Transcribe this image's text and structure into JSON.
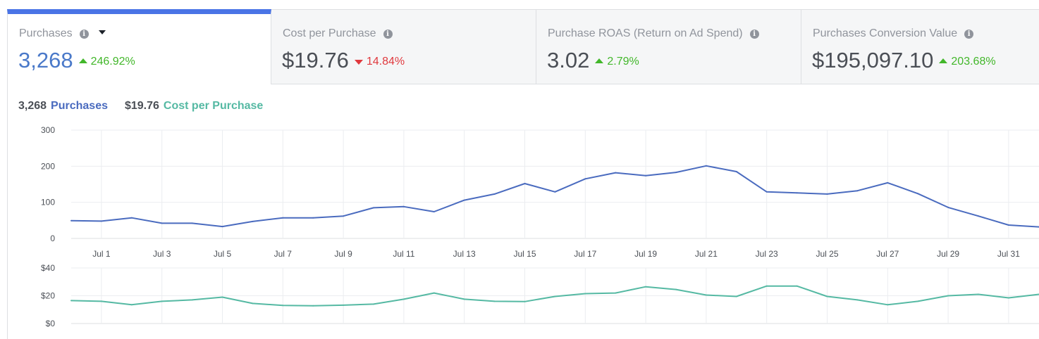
{
  "tabs": [
    {
      "label": "Purchases",
      "value": "3,268",
      "change": "246.92%",
      "direction": "up",
      "active": true
    },
    {
      "label": "Cost per Purchase",
      "value": "$19.76",
      "change": "14.84%",
      "direction": "down",
      "active": false
    },
    {
      "label": "Purchase ROAS (Return on Ad Spend)",
      "value": "3.02",
      "change": "2.79%",
      "direction": "up",
      "active": false
    },
    {
      "label": "Purchases Conversion Value",
      "value": "$195,097.10",
      "change": "203.68%",
      "direction": "up",
      "active": false
    }
  ],
  "legend": {
    "series1_value": "3,268",
    "series1_name": "Purchases",
    "series2_value": "$19.76",
    "series2_name": "Cost per Purchase"
  },
  "chart_data": [
    {
      "type": "line",
      "x": [
        "Jun 30",
        "Jul 1",
        "Jul 2",
        "Jul 3",
        "Jul 4",
        "Jul 5",
        "Jul 6",
        "Jul 7",
        "Jul 8",
        "Jul 9",
        "Jul 10",
        "Jul 11",
        "Jul 12",
        "Jul 13",
        "Jul 14",
        "Jul 15",
        "Jul 16",
        "Jul 17",
        "Jul 18",
        "Jul 19",
        "Jul 20",
        "Jul 21",
        "Jul 22",
        "Jul 23",
        "Jul 24",
        "Jul 25",
        "Jul 26",
        "Jul 27",
        "Jul 28",
        "Jul 29",
        "Jul 30",
        "Jul 31",
        "Aug 1"
      ],
      "tick_labels": [
        "Jul 1",
        "Jul 3",
        "Jul 5",
        "Jul 7",
        "Jul 9",
        "Jul 11",
        "Jul 13",
        "Jul 15",
        "Jul 17",
        "Jul 19",
        "Jul 21",
        "Jul 23",
        "Jul 25",
        "Jul 27",
        "Jul 29",
        "Jul 31"
      ],
      "series": [
        {
          "name": "Purchases",
          "color": "#4a6bbf",
          "values": [
            49,
            48,
            57,
            42,
            42,
            33,
            47,
            57,
            57,
            62,
            85,
            88,
            74,
            106,
            123,
            152,
            129,
            165,
            182,
            174,
            183,
            201,
            185,
            129,
            126,
            123,
            132,
            154,
            124,
            86,
            62,
            37,
            32
          ]
        }
      ],
      "yticks": [
        "0",
        "100",
        "200",
        "300"
      ],
      "ylim": [
        0,
        300
      ],
      "grid": true
    },
    {
      "type": "line",
      "x": [
        "Jun 30",
        "Jul 1",
        "Jul 2",
        "Jul 3",
        "Jul 4",
        "Jul 5",
        "Jul 6",
        "Jul 7",
        "Jul 8",
        "Jul 9",
        "Jul 10",
        "Jul 11",
        "Jul 12",
        "Jul 13",
        "Jul 14",
        "Jul 15",
        "Jul 16",
        "Jul 17",
        "Jul 18",
        "Jul 19",
        "Jul 20",
        "Jul 21",
        "Jul 22",
        "Jul 23",
        "Jul 24",
        "Jul 25",
        "Jul 26",
        "Jul 27",
        "Jul 28",
        "Jul 29",
        "Jul 30",
        "Jul 31",
        "Aug 1"
      ],
      "series": [
        {
          "name": "Cost per Purchase",
          "color": "#55b9a3",
          "values": [
            16.5,
            16,
            13.5,
            16,
            17,
            19,
            14.5,
            13,
            12.8,
            13.2,
            14,
            17.5,
            22,
            17.5,
            16,
            15.8,
            19.5,
            21.5,
            22,
            26.5,
            24.5,
            20.5,
            19.5,
            27,
            27,
            19.5,
            17,
            13.5,
            16,
            20,
            21,
            18.5,
            21
          ]
        }
      ],
      "yticks": [
        "$0",
        "$20",
        "$40"
      ],
      "ylim": [
        0,
        40
      ],
      "grid": true
    }
  ]
}
